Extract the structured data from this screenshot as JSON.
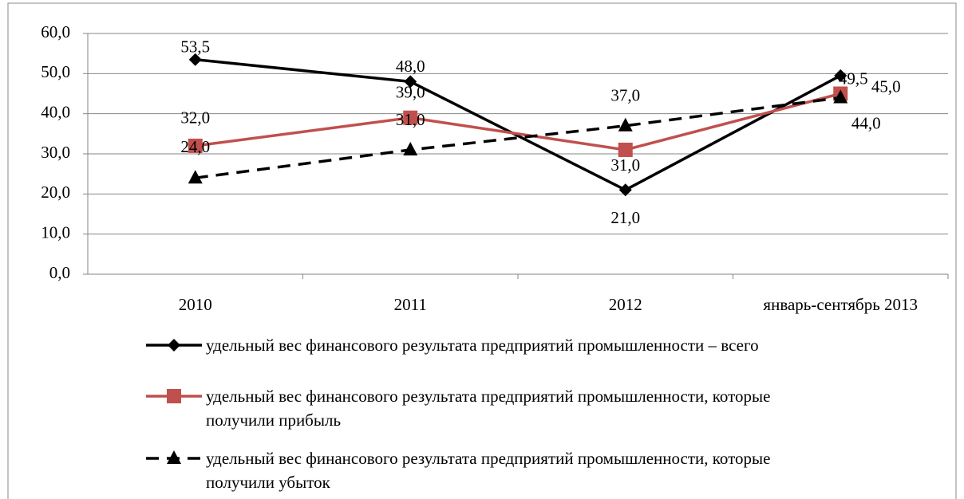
{
  "chart_data": {
    "type": "line",
    "categories": [
      "2010",
      "2011",
      "2012",
      "январь-сентябрь 2013"
    ],
    "series": [
      {
        "name": "удельный вес финансового результата предприятий промышленности – всего",
        "color": "#000000",
        "dash": "solid",
        "marker": "diamond",
        "values": [
          53.5,
          48.0,
          21.0,
          49.5
        ],
        "value_labels": [
          "53,5",
          "48,0",
          "21,0",
          "49,5"
        ]
      },
      {
        "name": "удельный вес финансового результата предприятий промышленности, которые получили прибыль",
        "color": "#c0504d",
        "dash": "solid",
        "marker": "square",
        "values": [
          32.0,
          39.0,
          31.0,
          45.0
        ],
        "value_labels": [
          "32,0",
          "39,0",
          "31,0",
          "45,0"
        ]
      },
      {
        "name": "удельный вес финансового результата предприятий промышленности, которые получили убыток",
        "color": "#000000",
        "dash": "dashed",
        "marker": "triangle",
        "values": [
          24.0,
          31.0,
          37.0,
          44.0
        ],
        "value_labels": [
          "24,0",
          "31,0",
          "37,0",
          "44,0"
        ]
      }
    ],
    "ylim": [
      0,
      60
    ],
    "yticks": [
      {
        "value": 0,
        "label": "0,0"
      },
      {
        "value": 10,
        "label": "10,0"
      },
      {
        "value": 20,
        "label": "20,0"
      },
      {
        "value": 30,
        "label": "30,0"
      },
      {
        "value": 40,
        "label": "40,0"
      },
      {
        "value": 50,
        "label": "50,0"
      },
      {
        "value": 60,
        "label": "60,0"
      }
    ],
    "grid": true,
    "legend": "bottom"
  }
}
